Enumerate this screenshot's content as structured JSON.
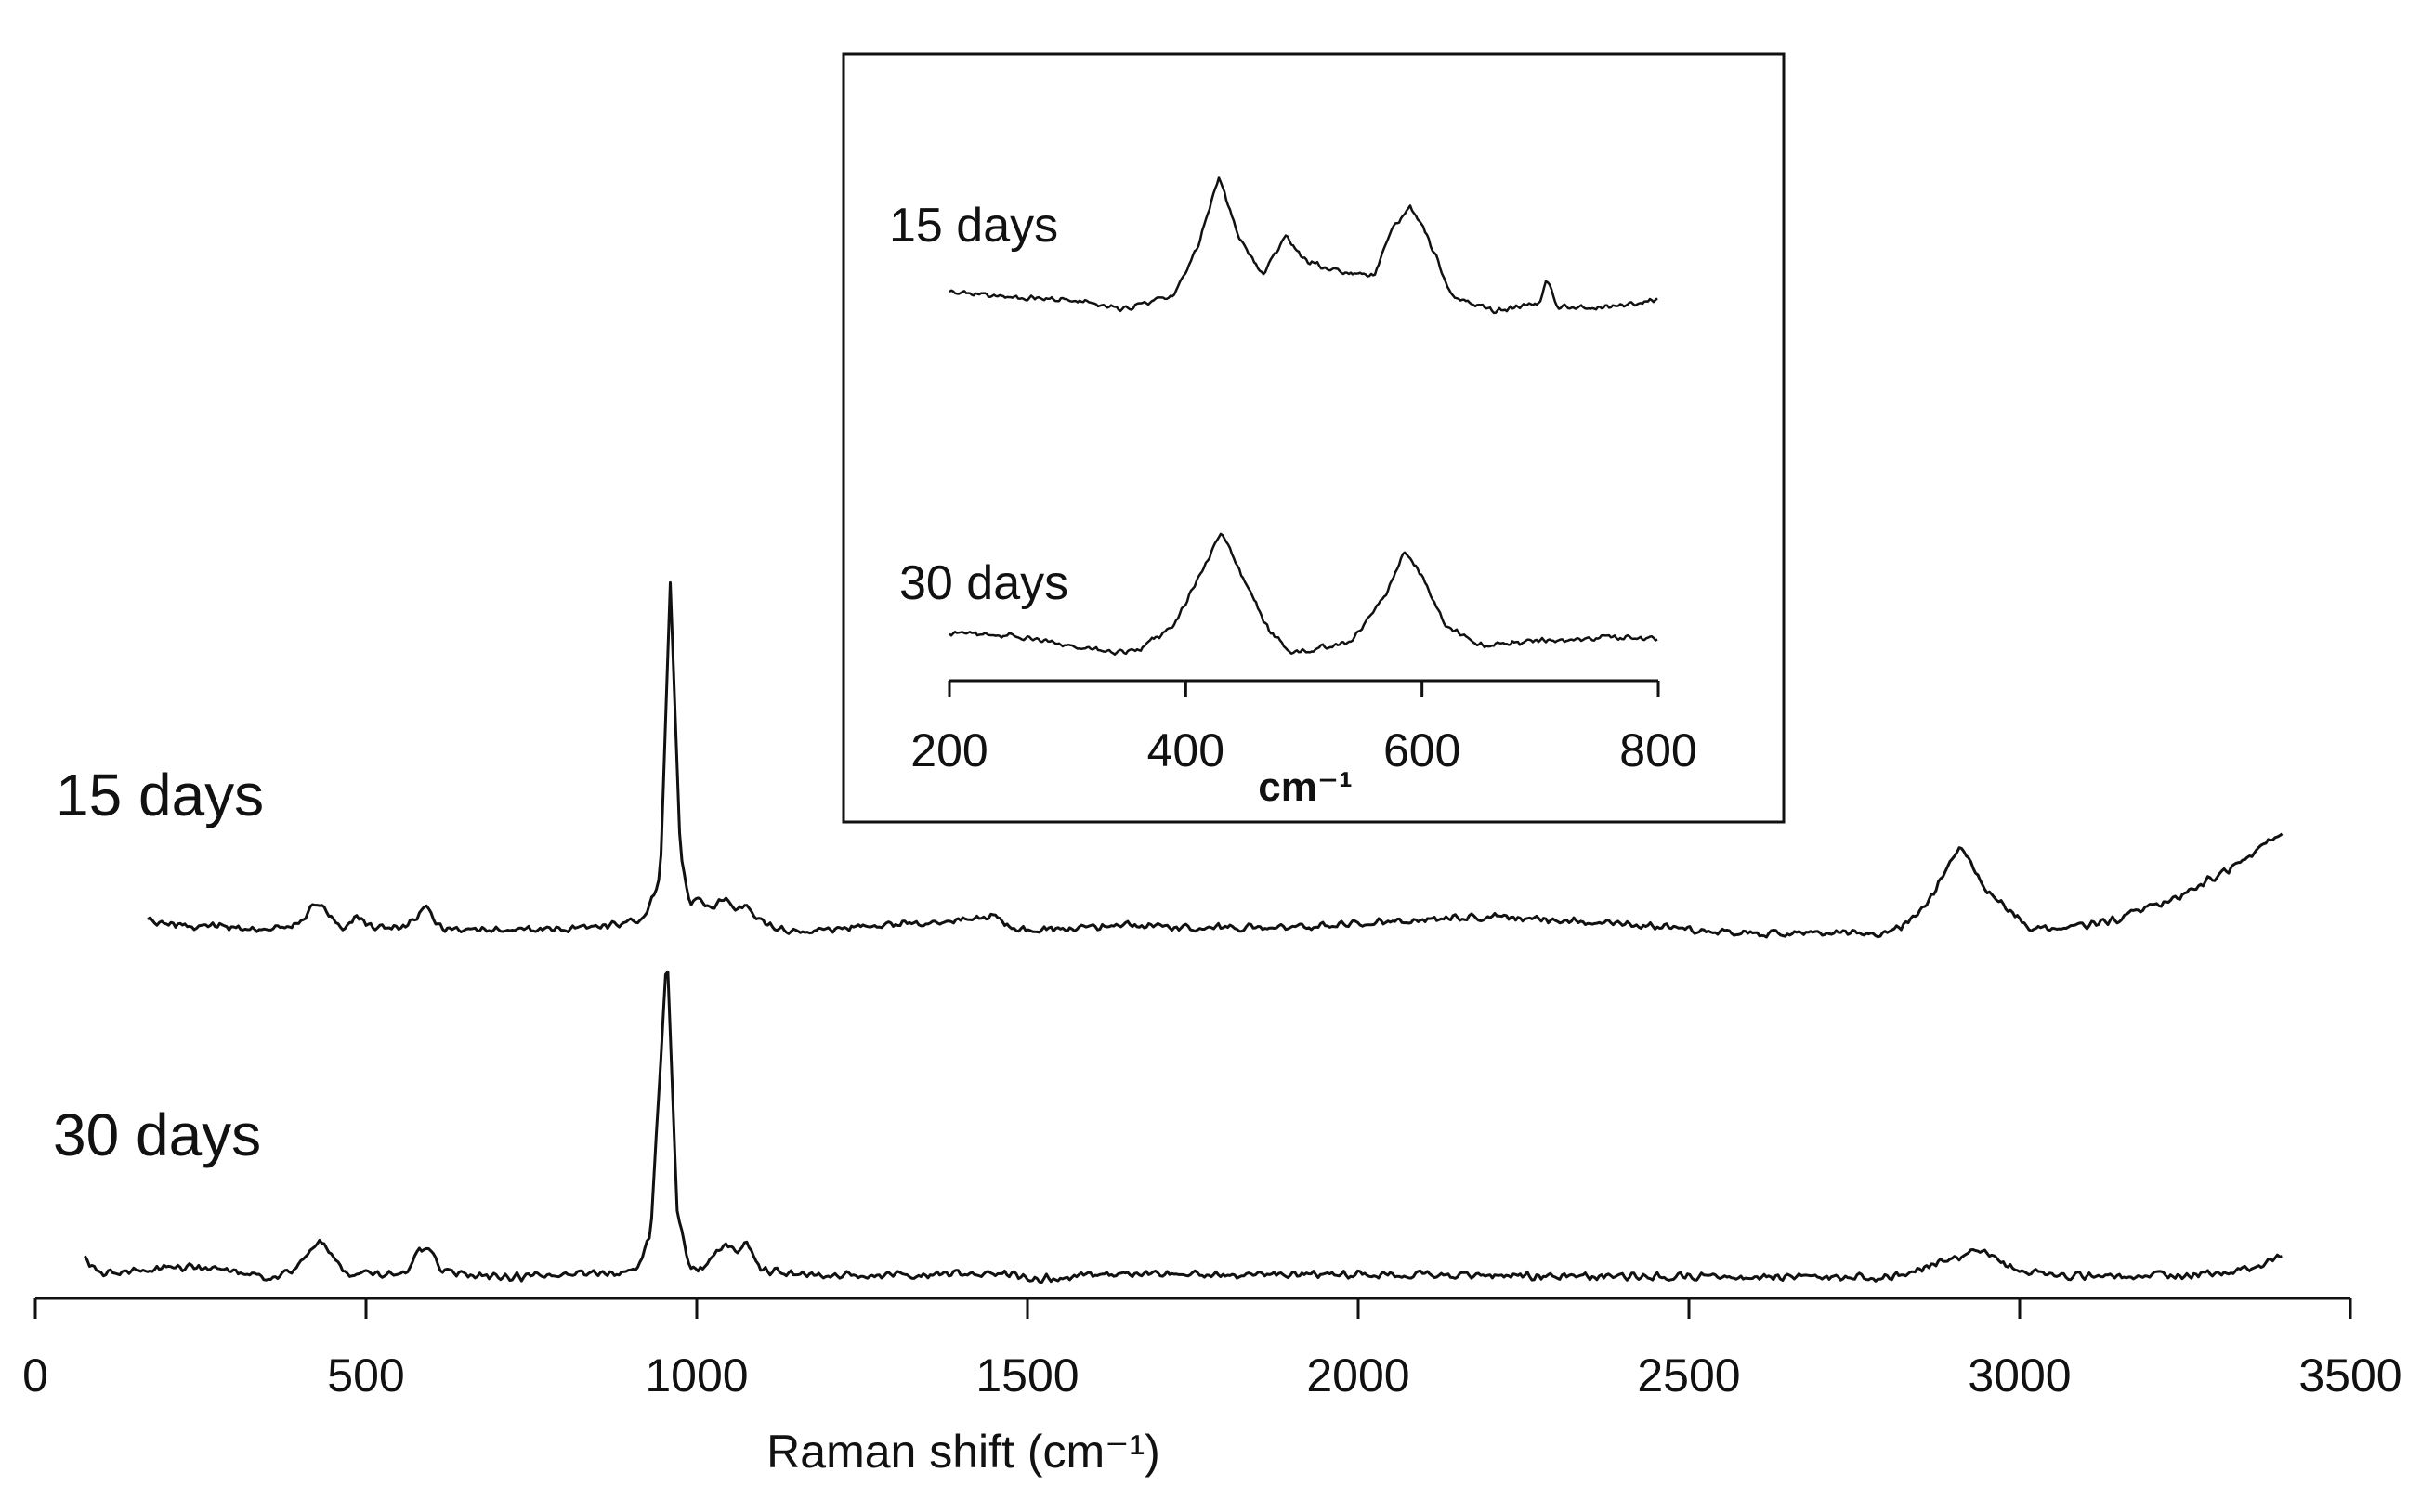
{
  "chart_data": [
    {
      "type": "line",
      "title": "",
      "xlabel": "Raman shift (cm⁻¹)",
      "ylabel": "",
      "xlim": [
        0,
        3500
      ],
      "x_ticks": [
        "0",
        "500",
        "1000",
        "1500",
        "2000",
        "2500",
        "3000",
        "3500"
      ],
      "grid": false,
      "line_color": "#111111",
      "series": [
        {
          "name": "15 days",
          "x_range": [
            170,
            3400
          ],
          "points": [
            [
              170,
              0.08
            ],
            [
              260,
              0.05
            ],
            [
              350,
              0.03
            ],
            [
              400,
              0.07
            ],
            [
              425,
              0.22
            ],
            [
              440,
              0.16
            ],
            [
              465,
              0.04
            ],
            [
              485,
              0.12
            ],
            [
              510,
              0.04
            ],
            [
              560,
              0.05
            ],
            [
              590,
              0.18
            ],
            [
              615,
              0.04
            ],
            [
              700,
              0.02
            ],
            [
              800,
              0.02
            ],
            [
              870,
              0.06
            ],
            [
              920,
              0.1
            ],
            [
              945,
              0.4
            ],
            [
              960,
              2.45
            ],
            [
              975,
              0.6
            ],
            [
              990,
              0.18
            ],
            [
              1000,
              0.25
            ],
            [
              1020,
              0.18
            ],
            [
              1045,
              0.24
            ],
            [
              1060,
              0.16
            ],
            [
              1075,
              0.2
            ],
            [
              1090,
              0.09
            ],
            [
              1150,
              0.0
            ],
            [
              1250,
              0.05
            ],
            [
              1350,
              0.08
            ],
            [
              1430,
              0.1
            ],
            [
              1450,
              0.13
            ],
            [
              1480,
              0.02
            ],
            [
              1550,
              0.03
            ],
            [
              1650,
              0.06
            ],
            [
              1750,
              0.04
            ],
            [
              1850,
              0.04
            ],
            [
              1950,
              0.05
            ],
            [
              2050,
              0.09
            ],
            [
              2200,
              0.12
            ],
            [
              2350,
              0.08
            ],
            [
              2500,
              0.03
            ],
            [
              2600,
              0.0
            ],
            [
              2700,
              0.0
            ],
            [
              2800,
              0.0
            ],
            [
              2840,
              0.1
            ],
            [
              2870,
              0.28
            ],
            [
              2910,
              0.62
            ],
            [
              2935,
              0.42
            ],
            [
              2950,
              0.3
            ],
            [
              2975,
              0.22
            ],
            [
              3010,
              0.05
            ],
            [
              3060,
              0.02
            ],
            [
              3150,
              0.1
            ],
            [
              3250,
              0.28
            ],
            [
              3330,
              0.48
            ],
            [
              3400,
              0.72
            ]
          ]
        },
        {
          "name": "30 days",
          "x_range": [
            75,
            3400
          ],
          "points": [
            [
              75,
              0.15
            ],
            [
              100,
              0.04
            ],
            [
              150,
              0.06
            ],
            [
              230,
              0.09
            ],
            [
              300,
              0.05
            ],
            [
              350,
              0.01
            ],
            [
              390,
              0.06
            ],
            [
              415,
              0.22
            ],
            [
              430,
              0.28
            ],
            [
              450,
              0.16
            ],
            [
              470,
              0.05
            ],
            [
              500,
              0.04
            ],
            [
              560,
              0.05
            ],
            [
              580,
              0.2
            ],
            [
              595,
              0.22
            ],
            [
              615,
              0.06
            ],
            [
              700,
              0.02
            ],
            [
              800,
              0.03
            ],
            [
              880,
              0.05
            ],
            [
              910,
              0.08
            ],
            [
              930,
              0.3
            ],
            [
              955,
              2.27
            ],
            [
              970,
              0.5
            ],
            [
              990,
              0.08
            ],
            [
              1010,
              0.08
            ],
            [
              1030,
              0.2
            ],
            [
              1045,
              0.27
            ],
            [
              1060,
              0.17
            ],
            [
              1075,
              0.26
            ],
            [
              1095,
              0.07
            ],
            [
              1150,
              0.04
            ],
            [
              1300,
              0.03
            ],
            [
              1450,
              0.04
            ],
            [
              1520,
              0.01
            ],
            [
              1600,
              0.03
            ],
            [
              1700,
              0.04
            ],
            [
              1850,
              0.04
            ],
            [
              2000,
              0.04
            ],
            [
              2200,
              0.03
            ],
            [
              2400,
              0.03
            ],
            [
              2600,
              0.02
            ],
            [
              2800,
              0.02
            ],
            [
              2850,
              0.08
            ],
            [
              2900,
              0.15
            ],
            [
              2940,
              0.22
            ],
            [
              2970,
              0.12
            ],
            [
              3000,
              0.05
            ],
            [
              3100,
              0.02
            ],
            [
              3250,
              0.03
            ],
            [
              3330,
              0.06
            ],
            [
              3400,
              0.16
            ]
          ]
        }
      ],
      "annotations": [
        "15 days",
        "30 days"
      ]
    },
    {
      "type": "line",
      "title": "",
      "xlabel": "cm⁻¹",
      "ylabel": "",
      "xlim": [
        200,
        800
      ],
      "x_ticks": [
        "200",
        "400",
        "600",
        "800"
      ],
      "grid": false,
      "line_color": "#111111",
      "series": [
        {
          "name": "15 days",
          "x_range": [
            200,
            800
          ],
          "points": [
            [
              200,
              0.22
            ],
            [
              250,
              0.19
            ],
            [
              300,
              0.18
            ],
            [
              350,
              0.13
            ],
            [
              390,
              0.2
            ],
            [
              410,
              0.45
            ],
            [
              428,
              0.8
            ],
            [
              445,
              0.5
            ],
            [
              465,
              0.3
            ],
            [
              485,
              0.5
            ],
            [
              500,
              0.38
            ],
            [
              530,
              0.32
            ],
            [
              560,
              0.3
            ],
            [
              575,
              0.55
            ],
            [
              590,
              0.65
            ],
            [
              605,
              0.5
            ],
            [
              625,
              0.2
            ],
            [
              660,
              0.12
            ],
            [
              700,
              0.16
            ],
            [
              705,
              0.28
            ],
            [
              715,
              0.14
            ],
            [
              760,
              0.14
            ],
            [
              800,
              0.18
            ]
          ]
        },
        {
          "name": "30 days",
          "x_range": [
            200,
            800
          ],
          "points": [
            [
              200,
              0.18
            ],
            [
              250,
              0.17
            ],
            [
              300,
              0.12
            ],
            [
              340,
              0.08
            ],
            [
              360,
              0.1
            ],
            [
              390,
              0.22
            ],
            [
              415,
              0.52
            ],
            [
              430,
              0.7
            ],
            [
              450,
              0.45
            ],
            [
              470,
              0.2
            ],
            [
              490,
              0.08
            ],
            [
              510,
              0.1
            ],
            [
              540,
              0.14
            ],
            [
              570,
              0.38
            ],
            [
              585,
              0.6
            ],
            [
              600,
              0.48
            ],
            [
              620,
              0.22
            ],
            [
              650,
              0.12
            ],
            [
              700,
              0.14
            ],
            [
              760,
              0.16
            ],
            [
              800,
              0.15
            ]
          ]
        }
      ],
      "annotations": [
        "15 days",
        "30 days"
      ]
    }
  ]
}
